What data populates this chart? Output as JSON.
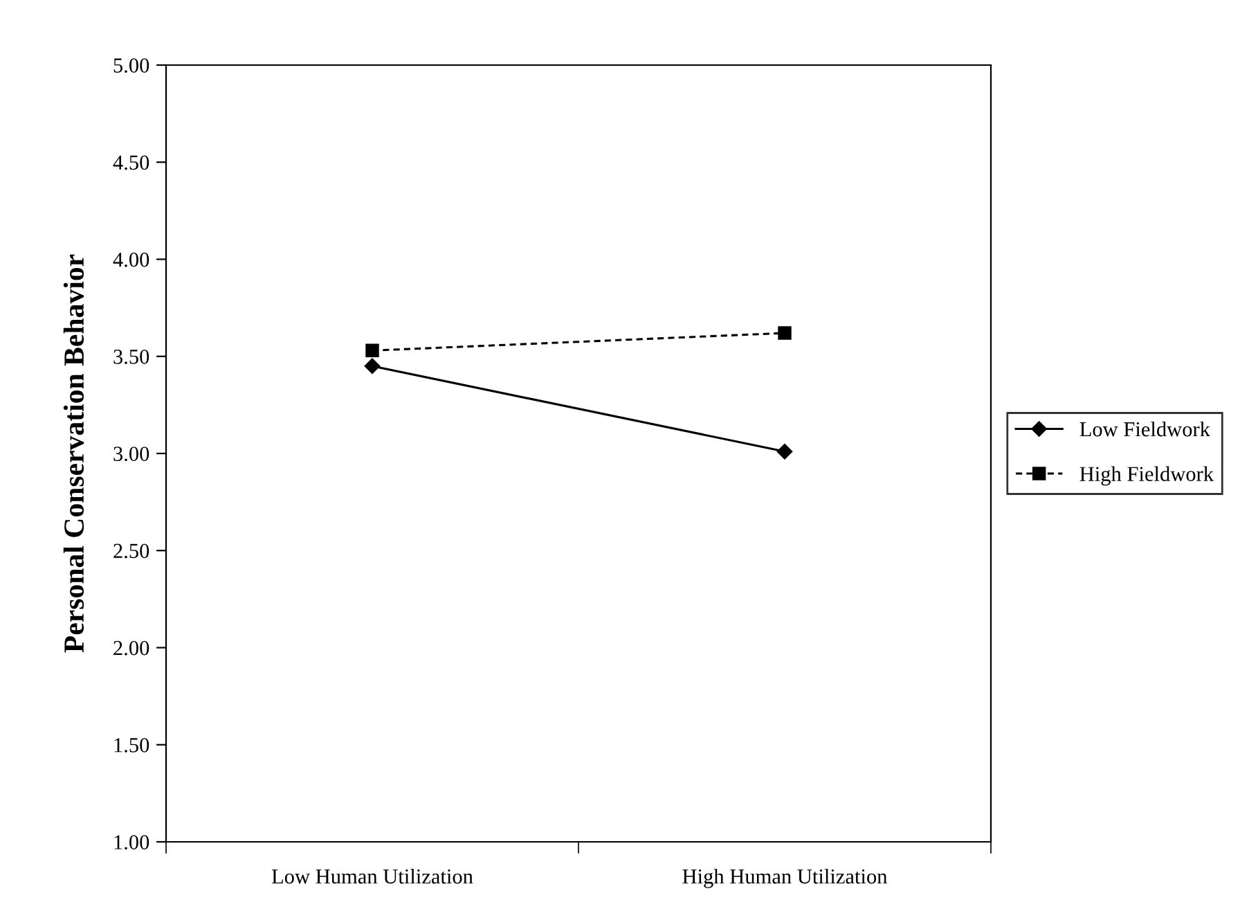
{
  "chart_data": {
    "type": "line",
    "ylabel": "Personal Conservation Behavior",
    "categories": [
      "Low Human Utilization",
      "High Human Utilization"
    ],
    "series": [
      {
        "name": "Low Fieldwork",
        "color": "#000000",
        "values": [
          3.45,
          3.01
        ],
        "marker": "diamond",
        "line_style": "solid"
      },
      {
        "name": "High Fieldwork",
        "color": "#000000",
        "values": [
          3.53,
          3.62
        ],
        "marker": "square",
        "line_style": "dashed"
      }
    ],
    "ylim": [
      1,
      5
    ],
    "yticks": [
      {
        "value": 1,
        "label": "1.00"
      },
      {
        "value": 1.5,
        "label": "1.50"
      },
      {
        "value": 2,
        "label": "2.00"
      },
      {
        "value": 2.5,
        "label": "2.50"
      },
      {
        "value": 3,
        "label": "3.00"
      },
      {
        "value": 3.5,
        "label": "3.50"
      },
      {
        "value": 4,
        "label": "4.00"
      },
      {
        "value": 4.5,
        "label": "4.50"
      },
      {
        "value": 5,
        "label": "5.00"
      }
    ],
    "grid": false,
    "legend": "right"
  }
}
